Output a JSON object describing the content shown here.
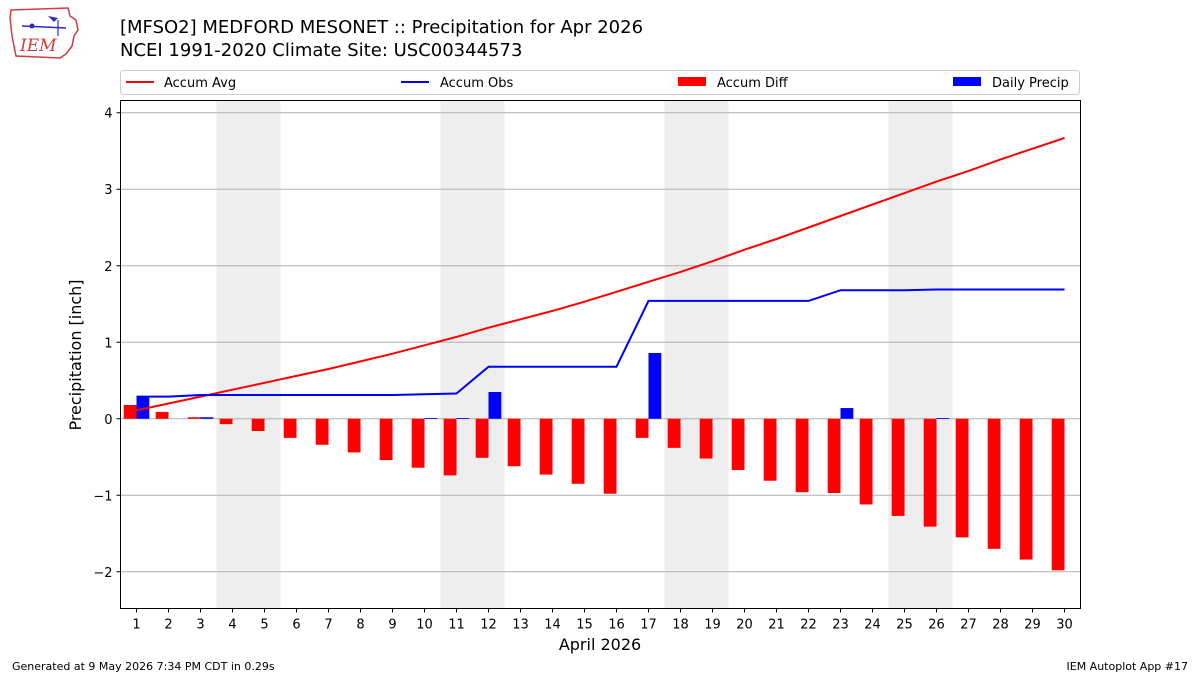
{
  "header": {
    "title": "[MFSO2] MEDFORD MESONET :: Precipitation for Apr 2026",
    "subtitle": "NCEI 1991-2020 Climate Site: USC00344573"
  },
  "logo": {
    "text": "IEM",
    "icon": "iem-iowa-logo-icon"
  },
  "footer": {
    "generated": "Generated at 9 May 2026 7:34 PM CDT in 0.29s",
    "app": "IEM Autoplot App #17"
  },
  "chart_data": {
    "type": "bar",
    "xlabel": "April 2026",
    "ylabel": "Precipitation [inch]",
    "xlim": [
      0.5,
      30.5
    ],
    "ylim": [
      -2.48,
      4.16
    ],
    "yticks": [
      -2,
      -1,
      0,
      1,
      2,
      3,
      4
    ],
    "grid": "y",
    "legend_placement": "top",
    "categories": [
      "1",
      "2",
      "3",
      "4",
      "5",
      "6",
      "7",
      "8",
      "9",
      "10",
      "11",
      "12",
      "13",
      "14",
      "15",
      "16",
      "17",
      "18",
      "19",
      "20",
      "21",
      "22",
      "23",
      "24",
      "25",
      "26",
      "27",
      "28",
      "29",
      "30"
    ],
    "weekend_shading": [
      [
        3.5,
        5.5
      ],
      [
        10.5,
        12.5
      ],
      [
        17.5,
        19.5
      ],
      [
        24.5,
        26.5
      ]
    ],
    "colors": {
      "accum_avg": "#ff0000",
      "accum_obs": "#0000ff",
      "accum_diff": "#ff0000",
      "daily_precip": "#0000ff",
      "shade": "#eeeeee",
      "grid": "#b0b0b0"
    },
    "series": [
      {
        "name": "Accum Avg",
        "kind": "line",
        "values": [
          0.11,
          0.2,
          0.29,
          0.38,
          0.47,
          0.56,
          0.65,
          0.75,
          0.85,
          0.96,
          1.07,
          1.19,
          1.3,
          1.41,
          1.53,
          1.66,
          1.79,
          1.92,
          2.06,
          2.21,
          2.35,
          2.5,
          2.65,
          2.8,
          2.95,
          3.1,
          3.24,
          3.39,
          3.53,
          3.67
        ]
      },
      {
        "name": "Accum Obs",
        "kind": "line",
        "values": [
          0.29,
          0.29,
          0.31,
          0.31,
          0.31,
          0.31,
          0.31,
          0.31,
          0.31,
          0.32,
          0.33,
          0.68,
          0.68,
          0.68,
          0.68,
          0.68,
          1.54,
          1.54,
          1.54,
          1.54,
          1.54,
          1.54,
          1.68,
          1.68,
          1.68,
          1.69,
          1.69,
          1.69,
          1.69,
          1.69
        ]
      },
      {
        "name": "Accum Diff",
        "kind": "bar",
        "values": [
          0.18,
          0.09,
          0.02,
          -0.07,
          -0.16,
          -0.25,
          -0.34,
          -0.44,
          -0.54,
          -0.64,
          -0.74,
          -0.51,
          -0.62,
          -0.73,
          -0.85,
          -0.98,
          -0.25,
          -0.38,
          -0.52,
          -0.67,
          -0.81,
          -0.96,
          -0.97,
          -1.12,
          -1.27,
          -1.41,
          -1.55,
          -1.7,
          -1.84,
          -1.98
        ]
      },
      {
        "name": "Daily Precip",
        "kind": "bar",
        "values": [
          0.29,
          0,
          0.02,
          0,
          0,
          0,
          0,
          0,
          0,
          0.01,
          0.01,
          0.35,
          0,
          0,
          0,
          0,
          0.86,
          0,
          0,
          0,
          0,
          0,
          0.14,
          0,
          0,
          0.01,
          0,
          0,
          0,
          0
        ]
      }
    ]
  }
}
